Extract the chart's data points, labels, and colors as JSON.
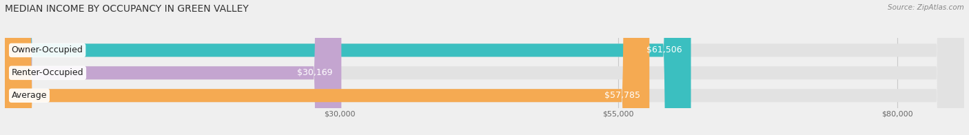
{
  "title": "MEDIAN INCOME BY OCCUPANCY IN GREEN VALLEY",
  "source": "Source: ZipAtlas.com",
  "categories": [
    "Owner-Occupied",
    "Renter-Occupied",
    "Average"
  ],
  "values": [
    61506,
    30169,
    57785
  ],
  "bar_colors": [
    "#3bbfc0",
    "#c4a5d0",
    "#f5aa52"
  ],
  "value_labels": [
    "$61,506",
    "$30,169",
    "$57,785"
  ],
  "x_ticks": [
    30000,
    55000,
    80000
  ],
  "x_tick_labels": [
    "$30,000",
    "$55,000",
    "$80,000"
  ],
  "xlim_min": 0,
  "xlim_max": 86000,
  "bar_height": 0.58,
  "background_color": "#efefef",
  "bar_bg_color": "#e2e2e2",
  "title_fontsize": 10,
  "label_fontsize": 9,
  "value_fontsize": 9,
  "tick_fontsize": 8,
  "source_fontsize": 7.5
}
